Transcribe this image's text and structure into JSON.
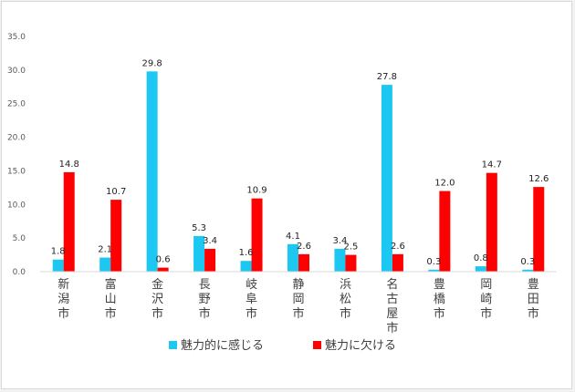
{
  "chart_data": {
    "type": "bar",
    "title": "",
    "xlabel": "",
    "ylabel": "",
    "ylim": [
      0,
      35
    ],
    "yticks": [
      "0.0",
      "5.0",
      "10.0",
      "15.0",
      "20.0",
      "25.0",
      "30.0",
      "35.0"
    ],
    "grid": false,
    "legend_position": "bottom",
    "categories": [
      "新潟市",
      "富山市",
      "金沢市",
      "長野市",
      "岐阜市",
      "静岡市",
      "浜松市",
      "名古屋市",
      "豊橋市",
      "岡崎市",
      "豊田市"
    ],
    "series": [
      {
        "name": "魅力的に感じる",
        "color": "#1cc7f2",
        "values": [
          1.8,
          2.1,
          29.8,
          5.3,
          1.6,
          4.1,
          3.4,
          27.8,
          0.3,
          0.8,
          0.3
        ],
        "labels": [
          "1.8",
          "2.1",
          "29.8",
          "5.3",
          "1.6",
          "4.1",
          "3.4",
          "27.8",
          "0.3",
          "0.8",
          "0.3"
        ]
      },
      {
        "name": "魅力に欠ける",
        "color": "#ff0000",
        "values": [
          14.8,
          10.7,
          0.6,
          3.4,
          10.9,
          2.6,
          2.5,
          2.6,
          12.0,
          14.7,
          12.6
        ],
        "labels": [
          "14.8",
          "10.7",
          "0.6",
          "3.4",
          "10.9",
          "2.6",
          "2.5",
          "2.6",
          "12.0",
          "14.7",
          "12.6"
        ]
      }
    ]
  }
}
